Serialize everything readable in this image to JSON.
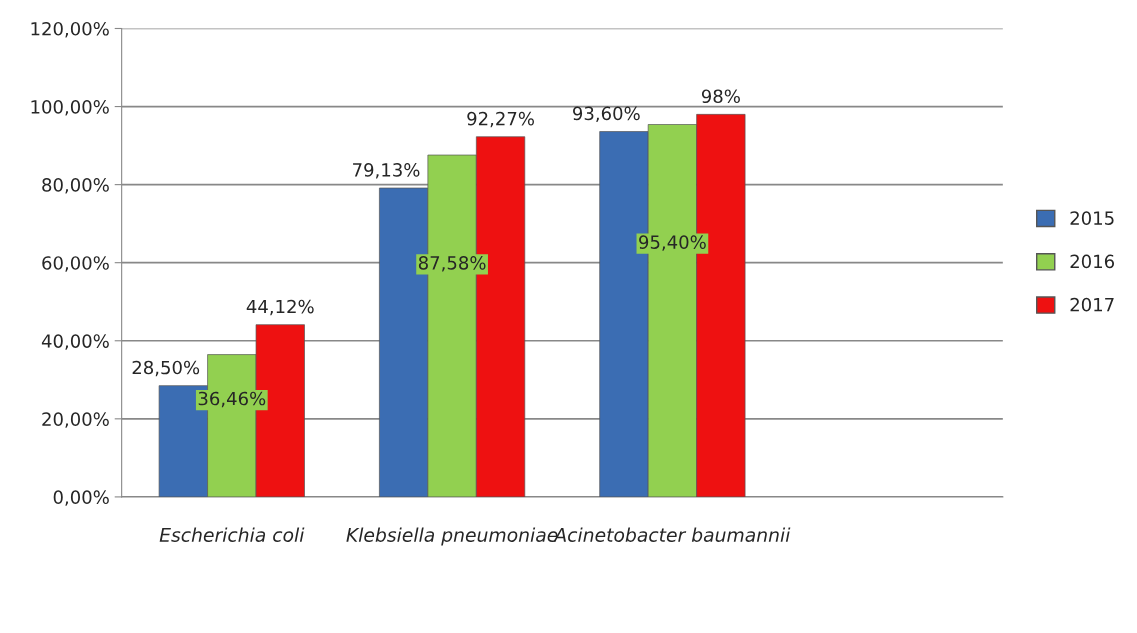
{
  "chart_data": {
    "type": "bar",
    "categories": [
      "Escherichia coli",
      "Klebsiella pneumoniae",
      "Acinetobacter baumannii",
      null
    ],
    "series": [
      {
        "name": "2015",
        "color": "#3b6db3",
        "values": [
          28.5,
          79.13,
          93.6,
          null
        ],
        "value_labels": [
          "28,50%",
          "79,13%",
          "93,60%",
          null
        ]
      },
      {
        "name": "2016",
        "color": "#92d050",
        "values": [
          36.46,
          87.58,
          95.4,
          null
        ],
        "value_labels": [
          "36,46%",
          "87,58%",
          "95,40%",
          null
        ]
      },
      {
        "name": "2017",
        "color": "#ee1111",
        "values": [
          44.12,
          92.27,
          98,
          null
        ],
        "value_labels": [
          "44,12%",
          "92,27%",
          "98%",
          null
        ]
      }
    ],
    "ylim": [
      0,
      120
    ],
    "yticks": [
      {
        "value": 0,
        "label": "0,00%"
      },
      {
        "value": 20,
        "label": "20,00%"
      },
      {
        "value": 40,
        "label": "40,00%"
      },
      {
        "value": 60,
        "label": "60,00%"
      },
      {
        "value": 80,
        "label": "80,00%"
      },
      {
        "value": 100,
        "label": "100,00%"
      },
      {
        "value": 120,
        "label": "120,00%"
      }
    ],
    "grid": "y",
    "legend": "right"
  }
}
